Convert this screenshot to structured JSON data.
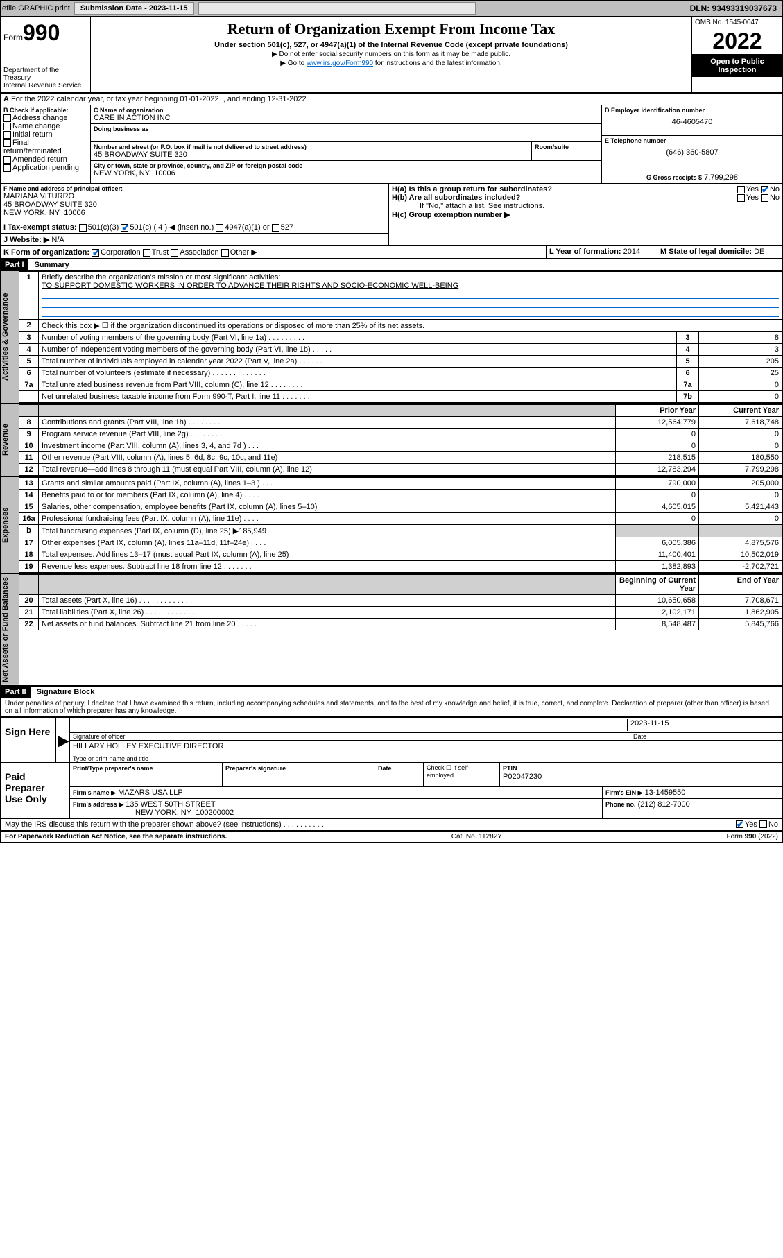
{
  "topbar": {
    "efile": "efile GRAPHIC print",
    "submission_label": "Submission Date - 2023-11-15",
    "dln": "DLN: 93493319037673"
  },
  "header": {
    "form_label": "Form",
    "form_num": "990",
    "dept": "Department of the Treasury",
    "irs": "Internal Revenue Service",
    "title": "Return of Organization Exempt From Income Tax",
    "subtitle": "Under section 501(c), 527, or 4947(a)(1) of the Internal Revenue Code (except private foundations)",
    "instr1": "▶ Do not enter social security numbers on this form as it may be made public.",
    "instr2_pre": "▶ Go to ",
    "instr2_link": "www.irs.gov/Form990",
    "instr2_post": " for instructions and the latest information.",
    "omb": "OMB No. 1545-0047",
    "year": "2022",
    "inspect": "Open to Public Inspection"
  },
  "lineA": {
    "text": "For the 2022 calendar year, or tax year beginning 01-01-2022  , and ending 12-31-2022"
  },
  "boxB": {
    "label": "B Check if applicable:",
    "items": [
      "Address change",
      "Name change",
      "Initial return",
      "Final return/terminated",
      "Amended return",
      "Application pending"
    ]
  },
  "boxC": {
    "label": "C Name of organization",
    "name": "CARE IN ACTION INC",
    "dba_label": "Doing business as",
    "addr_label": "Number and street (or P.O. box if mail is not delivered to street address)",
    "room_label": "Room/suite",
    "addr": "45 BROADWAY SUITE 320",
    "city_label": "City or town, state or province, country, and ZIP or foreign postal code",
    "city": "NEW YORK, NY  10006"
  },
  "boxD": {
    "label": "D Employer identification number",
    "val": "46-4605470"
  },
  "boxE": {
    "label": "E Telephone number",
    "val": "(646) 360-5807"
  },
  "boxG": {
    "label": "G Gross receipts $",
    "val": "7,799,298"
  },
  "boxF": {
    "label": "F Name and address of principal officer:",
    "name": "MARIANA VITURRO",
    "addr1": "45 BROADWAY SUITE 320",
    "addr2": "NEW YORK, NY  10006"
  },
  "boxH": {
    "a_label": "H(a)  Is this a group return for subordinates?",
    "a_yes": "Yes",
    "a_no": "No",
    "b_label": "H(b)  Are all subordinates included?",
    "b_yes": "Yes",
    "b_no": "No",
    "b_note": "If \"No,\" attach a list. See instructions.",
    "c_label": "H(c)  Group exemption number ▶"
  },
  "lineI": {
    "label": "I   Tax-exempt status:",
    "opts": [
      "501(c)(3)",
      "501(c) ( 4 ) ◀ (insert no.)",
      "4947(a)(1) or",
      "527"
    ]
  },
  "lineJ": {
    "label": "J   Website: ▶",
    "val": "N/A"
  },
  "lineK": {
    "label": "K Form of organization:",
    "opts": [
      "Corporation",
      "Trust",
      "Association",
      "Other ▶"
    ]
  },
  "lineL": {
    "label": "L Year of formation:",
    "val": "2014"
  },
  "lineM": {
    "label": "M State of legal domicile:",
    "val": "DE"
  },
  "partI": {
    "hdr": "Part I",
    "title": "Summary",
    "q1_label": "Briefly describe the organization's mission or most significant activities:",
    "q1_text": "TO SUPPORT DOMESTIC WORKERS IN ORDER TO ADVANCE THEIR RIGHTS AND SOCIO-ECONOMIC WELL-BEING",
    "q2": "Check this box ▶ ☐ if the organization discontinued its operations or disposed of more than 25% of its net assets.",
    "rows_gov": [
      {
        "n": "3",
        "t": "Number of voting members of the governing body (Part VI, line 1a)  .   .   .   .   .   .   .   .   .",
        "box": "3",
        "v": "8"
      },
      {
        "n": "4",
        "t": "Number of independent voting members of the governing body (Part VI, line 1b)  .   .   .   .   .",
        "box": "4",
        "v": "3"
      },
      {
        "n": "5",
        "t": "Total number of individuals employed in calendar year 2022 (Part V, line 2a)  .   .   .   .   .   .",
        "box": "5",
        "v": "205"
      },
      {
        "n": "6",
        "t": "Total number of volunteers (estimate if necessary)  .   .   .   .   .   .   .   .   .   .   .   .   .",
        "box": "6",
        "v": "25"
      },
      {
        "n": "7a",
        "t": "Total unrelated business revenue from Part VIII, column (C), line 12  .   .   .   .   .   .   .   .",
        "box": "7a",
        "v": "0"
      },
      {
        "n": "",
        "t": "Net unrelated business taxable income from Form 990-T, Part I, line 11  .   .   .   .   .   .   .",
        "box": "7b",
        "v": "0"
      }
    ],
    "col_prior": "Prior Year",
    "col_current": "Current Year",
    "rows_rev": [
      {
        "n": "8",
        "t": "Contributions and grants (Part VIII, line 1h)   .   .   .   .   .   .   .   .",
        "p": "12,564,779",
        "c": "7,618,748"
      },
      {
        "n": "9",
        "t": "Program service revenue (Part VIII, line 2g)   .   .   .   .   .   .   .   .",
        "p": "0",
        "c": "0"
      },
      {
        "n": "10",
        "t": "Investment income (Part VIII, column (A), lines 3, 4, and 7d )   .   .   .",
        "p": "0",
        "c": "0"
      },
      {
        "n": "11",
        "t": "Other revenue (Part VIII, column (A), lines 5, 6d, 8c, 9c, 10c, and 11e)",
        "p": "218,515",
        "c": "180,550"
      },
      {
        "n": "12",
        "t": "Total revenue—add lines 8 through 11 (must equal Part VIII, column (A), line 12)",
        "p": "12,783,294",
        "c": "7,799,298"
      }
    ],
    "rows_exp": [
      {
        "n": "13",
        "t": "Grants and similar amounts paid (Part IX, column (A), lines 1–3 )   .   .   .",
        "p": "790,000",
        "c": "205,000"
      },
      {
        "n": "14",
        "t": "Benefits paid to or for members (Part IX, column (A), line 4)   .   .   .   .",
        "p": "0",
        "c": "0"
      },
      {
        "n": "15",
        "t": "Salaries, other compensation, employee benefits (Part IX, column (A), lines 5–10)",
        "p": "4,605,015",
        "c": "5,421,443"
      },
      {
        "n": "16a",
        "t": "Professional fundraising fees (Part IX, column (A), line 11e)   .   .   .   .",
        "p": "0",
        "c": "0"
      },
      {
        "n": "b",
        "t": "Total fundraising expenses (Part IX, column (D), line 25) ▶185,949",
        "p": "",
        "c": "",
        "shade": true
      },
      {
        "n": "17",
        "t": "Other expenses (Part IX, column (A), lines 11a–11d, 11f–24e)   .   .   .   .",
        "p": "6,005,386",
        "c": "4,875,576"
      },
      {
        "n": "18",
        "t": "Total expenses. Add lines 13–17 (must equal Part IX, column (A), line 25)",
        "p": "11,400,401",
        "c": "10,502,019"
      },
      {
        "n": "19",
        "t": "Revenue less expenses. Subtract line 18 from line 12   .   .   .   .   .   .   .",
        "p": "1,382,893",
        "c": "-2,702,721"
      }
    ],
    "col_beg": "Beginning of Current Year",
    "col_end": "End of Year",
    "rows_net": [
      {
        "n": "20",
        "t": "Total assets (Part X, line 16)   .   .   .   .   .   .   .   .   .   .   .   .   .",
        "p": "10,650,658",
        "c": "7,708,671"
      },
      {
        "n": "21",
        "t": "Total liabilities (Part X, line 26)   .   .   .   .   .   .   .   .   .   .   .   .",
        "p": "2,102,171",
        "c": "1,862,905"
      },
      {
        "n": "22",
        "t": "Net assets or fund balances. Subtract line 21 from line 20   .   .   .   .   .",
        "p": "8,548,487",
        "c": "5,845,766"
      }
    ],
    "side_gov": "Activities & Governance",
    "side_rev": "Revenue",
    "side_exp": "Expenses",
    "side_net": "Net Assets or Fund Balances"
  },
  "partII": {
    "hdr": "Part II",
    "title": "Signature Block",
    "decl": "Under penalties of perjury, I declare that I have examined this return, including accompanying schedules and statements, and to the best of my knowledge and belief, it is true, correct, and complete. Declaration of preparer (other than officer) is based on all information of which preparer has any knowledge.",
    "sign_here": "Sign Here",
    "sig_officer": "Signature of officer",
    "sig_date": "2023-11-15",
    "date_label": "Date",
    "officer_name": "HILLARY HOLLEY  EXECUTIVE DIRECTOR",
    "officer_sub": "Type or print name and title",
    "paid": "Paid Preparer Use Only",
    "prep_name_label": "Print/Type preparer's name",
    "prep_sig_label": "Preparer's signature",
    "prep_date_label": "Date",
    "check_self": "Check ☐ if self-employed",
    "ptin_label": "PTIN",
    "ptin": "P02047230",
    "firm_name_label": "Firm's name    ▶",
    "firm_name": "MAZARS USA LLP",
    "firm_ein_label": "Firm's EIN ▶",
    "firm_ein": "13-1459550",
    "firm_addr_label": "Firm's address ▶",
    "firm_addr1": "135 WEST 50TH STREET",
    "firm_addr2": "NEW YORK, NY  100200002",
    "firm_phone_label": "Phone no.",
    "firm_phone": "(212) 812-7000",
    "may_irs": "May the IRS discuss this return with the preparer shown above? (see instructions)   .   .   .   .   .   .   .   .   .   .",
    "may_yes": "Yes",
    "may_no": "No"
  },
  "footer": {
    "pra": "For Paperwork Reduction Act Notice, see the separate instructions.",
    "cat": "Cat. No. 11282Y",
    "form": "Form 990 (2022)"
  }
}
